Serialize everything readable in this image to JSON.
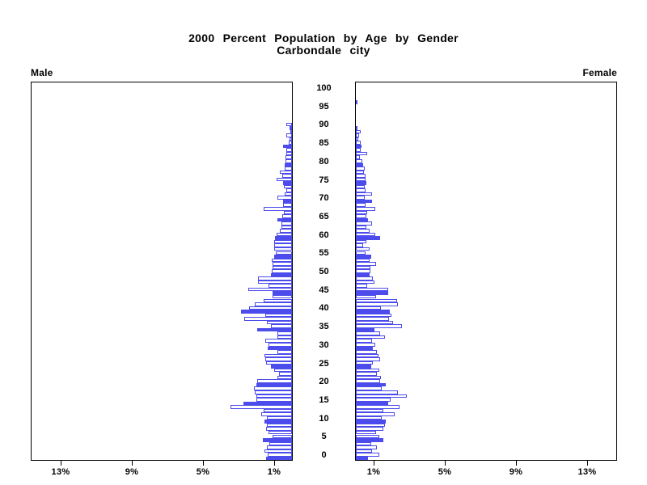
{
  "title": {
    "line1": "2000 Percent Population by Age by Gender",
    "line2": "Carbondale city"
  },
  "panels": {
    "male_label": "Male",
    "female_label": "Female"
  },
  "axes": {
    "age_tick_labels": [
      "0",
      "5",
      "10",
      "15",
      "20",
      "25",
      "30",
      "35",
      "40",
      "45",
      "50",
      "55",
      "60",
      "65",
      "70",
      "75",
      "80",
      "85",
      "90",
      "95",
      "100"
    ],
    "male_pct_tick_labels": [
      "13%",
      "9%",
      "5%",
      "1%"
    ],
    "male_pct_tick_values": [
      13,
      9,
      5,
      1
    ],
    "female_pct_tick_labels": [
      "1%",
      "5%",
      "9%",
      "13%"
    ],
    "female_pct_tick_values": [
      1,
      5,
      9,
      13
    ]
  },
  "colors": {
    "bar_blue": "#4c4cec",
    "axis_black": "#000000",
    "background": "#ffffff"
  },
  "chart_data": {
    "type": "bar",
    "subtype": "population-pyramid",
    "title": "2000 Percent Population by Age by Gender",
    "subtitle": "Carbondale city",
    "orientation": "horizontal-mirrored",
    "age_start": 0,
    "age_step": 1,
    "age_max": 100,
    "x_axis_units": "percent",
    "x_tick_values_pct": [
      1,
      5,
      9,
      13
    ],
    "x_range_pct": [
      0,
      14.7
    ],
    "grid": false,
    "legend": "none",
    "solid_fill_rule": "bars at ages that are multiples of 5 are solid blue; all other ages are white with blue outline",
    "series": [
      {
        "name": "Male",
        "side": "left",
        "values": [
          1.45,
          1.35,
          1.54,
          1.42,
          1.27,
          1.65,
          1.1,
          1.3,
          1.45,
          1.4,
          1.55,
          1.4,
          1.75,
          1.6,
          3.45,
          2.75,
          2.0,
          2.0,
          2.1,
          2.15,
          2.0,
          1.95,
          0.8,
          0.75,
          1.0,
          1.2,
          1.45,
          1.5,
          1.55,
          0.8,
          1.35,
          1.3,
          1.5,
          0.8,
          0.8,
          1.95,
          1.2,
          1.4,
          2.7,
          1.5,
          2.85,
          2.4,
          2.1,
          1.6,
          1.1,
          1.1,
          2.45,
          1.3,
          1.9,
          1.9,
          1.2,
          1.15,
          1.1,
          1.1,
          1.15,
          1.0,
          0.9,
          1.0,
          1.0,
          1.0,
          0.95,
          0.85,
          0.7,
          0.6,
          0.6,
          0.8,
          0.55,
          0.45,
          1.6,
          0.5,
          0.5,
          0.8,
          0.4,
          0.3,
          0.45,
          0.5,
          0.85,
          0.55,
          0.7,
          0.4,
          0.4,
          0.35,
          0.35,
          0.3,
          0.3,
          0.5,
          0.2,
          0.15,
          0.3,
          0.1,
          0.15,
          0.3,
          0,
          0,
          0,
          0,
          0,
          0,
          0,
          0,
          0
        ]
      },
      {
        "name": "Female",
        "side": "right",
        "values": [
          0.7,
          1.3,
          0.9,
          1.2,
          0.85,
          1.55,
          1.3,
          1.15,
          1.55,
          1.65,
          1.7,
          1.45,
          2.2,
          1.55,
          2.45,
          1.8,
          1.95,
          2.85,
          2.35,
          1.45,
          1.7,
          1.35,
          1.4,
          1.2,
          1.3,
          0.85,
          0.95,
          1.35,
          1.25,
          1.2,
          0.95,
          1.1,
          0.9,
          1.65,
          1.35,
          1.05,
          2.6,
          2.1,
          1.85,
          2.0,
          1.9,
          1.4,
          2.35,
          2.3,
          1.15,
          1.8,
          1.8,
          0.65,
          1.05,
          0.95,
          0.76,
          0.8,
          0.8,
          1.15,
          0.75,
          0.85,
          0.55,
          0.75,
          0.4,
          0.6,
          1.35,
          1.1,
          0.75,
          0.6,
          0.9,
          0.7,
          0.6,
          0.65,
          1.1,
          0.55,
          0.9,
          0.5,
          0.9,
          0.55,
          0.5,
          0.6,
          0.56,
          0.56,
          0.46,
          0.49,
          0.41,
          0.36,
          0.22,
          0.65,
          0.25,
          0.3,
          0.25,
          0.15,
          0.17,
          0.25,
          0.1,
          0,
          0,
          0,
          0,
          0,
          0,
          0.1,
          0,
          0,
          0
        ]
      }
    ]
  }
}
